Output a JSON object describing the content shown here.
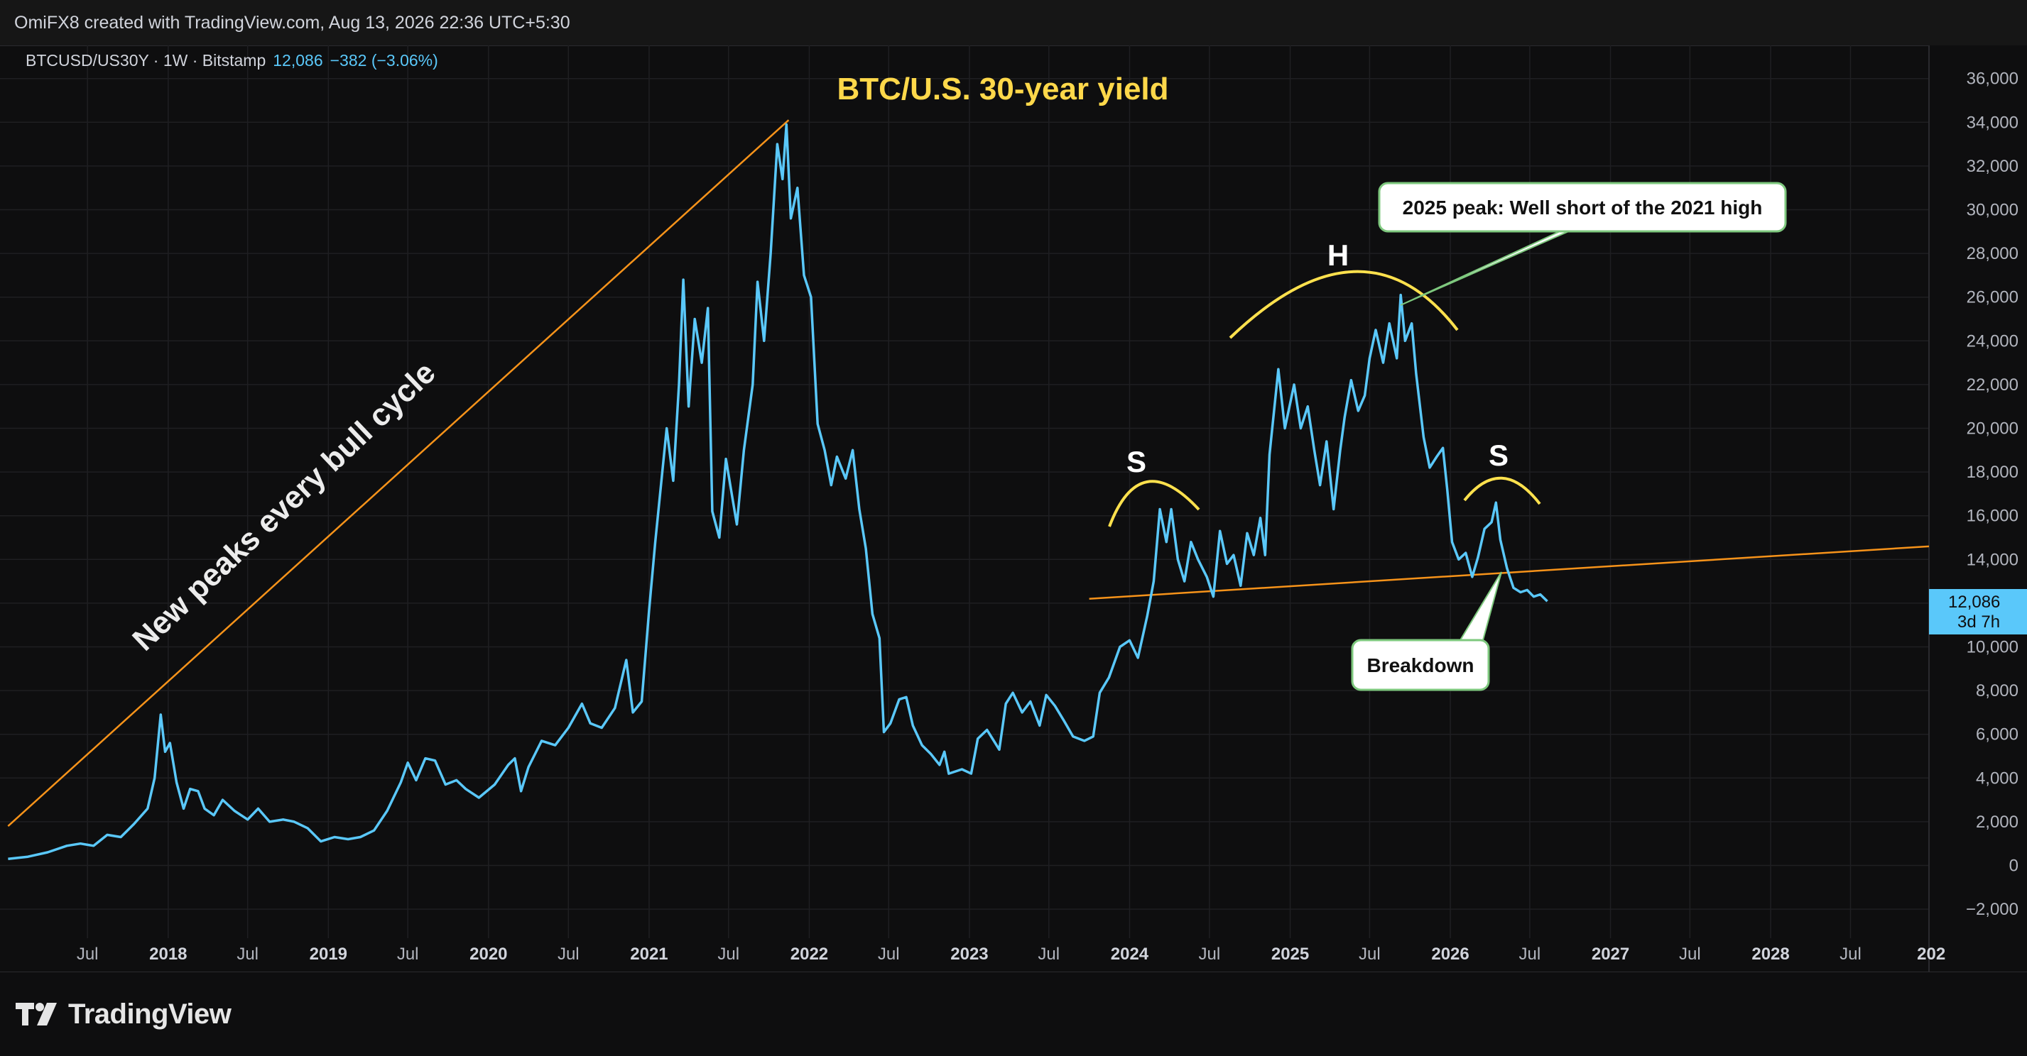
{
  "header": {
    "attribution": "OmiFX8 created with TradingView.com, Aug 13, 2026 22:36 UTC+5:30"
  },
  "symbol": {
    "label": "BTCUSD/US30Y · 1W · Bitstamp",
    "price": "12,086",
    "change": "−382 (−3.06%)"
  },
  "price_tag": {
    "price": "12,086",
    "countdown": "3d 7h"
  },
  "annotations": {
    "title": "BTC/U.S. 30-year yield",
    "diagonal": "New peaks every bull cycle",
    "shoulder_left": "S",
    "head": "H",
    "shoulder_right": "S",
    "callout_peak": "2025 peak: Well short of the 2021 high",
    "callout_breakdown": "Breakdown"
  },
  "brand": {
    "name": "TradingView"
  },
  "colors": {
    "background": "#0e0e0f",
    "series": "#5ac8fa",
    "trendline": "#f7931a",
    "title": "#ffd84a",
    "arcs": "#ffe14d",
    "grid": "#1f1f22"
  },
  "chart_data": {
    "type": "line",
    "title": "BTC/U.S. 30-year yield",
    "series_name": "BTCUSD/US30Y",
    "timeframe": "1W",
    "exchange": "Bitstamp",
    "ylim": [
      -3000,
      37000
    ],
    "yticks": [
      -2000,
      0,
      2000,
      4000,
      6000,
      8000,
      10000,
      12000,
      14000,
      16000,
      18000,
      20000,
      22000,
      24000,
      26000,
      28000,
      30000,
      32000,
      34000,
      36000
    ],
    "ytick_labels": [
      "−2,000",
      "0",
      "2,000",
      "4,000",
      "6,000",
      "8,000",
      "10,000",
      "12,000",
      "14,000",
      "16,000",
      "18,000",
      "20,000",
      "22,000",
      "24,000",
      "26,000",
      "28,000",
      "30,000",
      "32,000",
      "34,000",
      "36,000"
    ],
    "x_range": [
      "2017-01-01",
      "2029-01-01"
    ],
    "xticks": [
      {
        "date": "2017-07-01",
        "label": "Jul",
        "bold": false
      },
      {
        "date": "2018-01-01",
        "label": "2018",
        "bold": true
      },
      {
        "date": "2018-07-01",
        "label": "Jul",
        "bold": false
      },
      {
        "date": "2019-01-01",
        "label": "2019",
        "bold": true
      },
      {
        "date": "2019-07-01",
        "label": "Jul",
        "bold": false
      },
      {
        "date": "2020-01-01",
        "label": "2020",
        "bold": true
      },
      {
        "date": "2020-07-01",
        "label": "Jul",
        "bold": false
      },
      {
        "date": "2021-01-01",
        "label": "2021",
        "bold": true
      },
      {
        "date": "2021-07-01",
        "label": "Jul",
        "bold": false
      },
      {
        "date": "2022-01-01",
        "label": "2022",
        "bold": true
      },
      {
        "date": "2022-07-01",
        "label": "Jul",
        "bold": false
      },
      {
        "date": "2023-01-01",
        "label": "2023",
        "bold": true
      },
      {
        "date": "2023-07-01",
        "label": "Jul",
        "bold": false
      },
      {
        "date": "2024-01-01",
        "label": "2024",
        "bold": true
      },
      {
        "date": "2024-07-01",
        "label": "Jul",
        "bold": false
      },
      {
        "date": "2025-01-01",
        "label": "2025",
        "bold": true
      },
      {
        "date": "2025-07-01",
        "label": "Jul",
        "bold": false
      },
      {
        "date": "2026-01-01",
        "label": "2026",
        "bold": true
      },
      {
        "date": "2026-07-01",
        "label": "Jul",
        "bold": false
      },
      {
        "date": "2027-01-01",
        "label": "2027",
        "bold": true
      },
      {
        "date": "2027-07-01",
        "label": "Jul",
        "bold": false
      },
      {
        "date": "2028-01-01",
        "label": "2028",
        "bold": true
      },
      {
        "date": "2028-07-01",
        "label": "Jul",
        "bold": false
      },
      {
        "date": "2029-01-01",
        "label": "202",
        "bold": true
      }
    ],
    "points": [
      [
        "2017-01-01",
        300
      ],
      [
        "2017-02-15",
        400
      ],
      [
        "2017-04-01",
        600
      ],
      [
        "2017-05-15",
        900
      ],
      [
        "2017-06-15",
        1000
      ],
      [
        "2017-07-15",
        900
      ],
      [
        "2017-08-15",
        1400
      ],
      [
        "2017-09-15",
        1300
      ],
      [
        "2017-10-15",
        1900
      ],
      [
        "2017-11-15",
        2600
      ],
      [
        "2017-12-01",
        4000
      ],
      [
        "2017-12-15",
        6900
      ],
      [
        "2017-12-25",
        5200
      ],
      [
        "2018-01-05",
        5600
      ],
      [
        "2018-01-20",
        3800
      ],
      [
        "2018-02-05",
        2600
      ],
      [
        "2018-02-20",
        3500
      ],
      [
        "2018-03-10",
        3400
      ],
      [
        "2018-03-25",
        2600
      ],
      [
        "2018-04-15",
        2300
      ],
      [
        "2018-05-05",
        3000
      ],
      [
        "2018-06-01",
        2500
      ],
      [
        "2018-07-01",
        2100
      ],
      [
        "2018-07-25",
        2600
      ],
      [
        "2018-08-20",
        2000
      ],
      [
        "2018-09-20",
        2100
      ],
      [
        "2018-10-15",
        2000
      ],
      [
        "2018-11-15",
        1700
      ],
      [
        "2018-12-15",
        1100
      ],
      [
        "2019-01-15",
        1300
      ],
      [
        "2019-02-15",
        1200
      ],
      [
        "2019-03-15",
        1300
      ],
      [
        "2019-04-15",
        1600
      ],
      [
        "2019-05-15",
        2500
      ],
      [
        "2019-06-15",
        3800
      ],
      [
        "2019-07-01",
        4700
      ],
      [
        "2019-07-20",
        3900
      ],
      [
        "2019-08-10",
        4900
      ],
      [
        "2019-09-01",
        4800
      ],
      [
        "2019-09-25",
        3700
      ],
      [
        "2019-10-20",
        3900
      ],
      [
        "2019-11-10",
        3500
      ],
      [
        "2019-12-10",
        3100
      ],
      [
        "2020-01-15",
        3700
      ],
      [
        "2020-02-15",
        4600
      ],
      [
        "2020-03-01",
        4900
      ],
      [
        "2020-03-15",
        3400
      ],
      [
        "2020-04-01",
        4500
      ],
      [
        "2020-05-01",
        5700
      ],
      [
        "2020-06-01",
        5500
      ],
      [
        "2020-07-01",
        6300
      ],
      [
        "2020-08-01",
        7400
      ],
      [
        "2020-08-20",
        6500
      ],
      [
        "2020-09-15",
        6300
      ],
      [
        "2020-10-15",
        7200
      ],
      [
        "2020-11-10",
        9400
      ],
      [
        "2020-11-25",
        7000
      ],
      [
        "2020-12-15",
        7500
      ],
      [
        "2021-01-01",
        11700
      ],
      [
        "2021-01-15",
        14800
      ],
      [
        "2021-02-10",
        20000
      ],
      [
        "2021-02-25",
        17600
      ],
      [
        "2021-03-10",
        22000
      ],
      [
        "2021-03-20",
        26800
      ],
      [
        "2021-04-01",
        21000
      ],
      [
        "2021-04-15",
        25000
      ],
      [
        "2021-05-01",
        23000
      ],
      [
        "2021-05-15",
        25500
      ],
      [
        "2021-05-25",
        16200
      ],
      [
        "2021-06-10",
        15000
      ],
      [
        "2021-06-25",
        18600
      ],
      [
        "2021-07-10",
        16800
      ],
      [
        "2021-07-20",
        15600
      ],
      [
        "2021-08-05",
        19000
      ],
      [
        "2021-08-25",
        22000
      ],
      [
        "2021-09-05",
        26700
      ],
      [
        "2021-09-20",
        24000
      ],
      [
        "2021-10-05",
        28000
      ],
      [
        "2021-10-20",
        33000
      ],
      [
        "2021-11-01",
        31400
      ],
      [
        "2021-11-10",
        33900
      ],
      [
        "2021-11-20",
        29600
      ],
      [
        "2021-12-05",
        31000
      ],
      [
        "2021-12-20",
        27000
      ],
      [
        "2022-01-05",
        26000
      ],
      [
        "2022-01-20",
        20200
      ],
      [
        "2022-02-05",
        19000
      ],
      [
        "2022-02-20",
        17400
      ],
      [
        "2022-03-05",
        18700
      ],
      [
        "2022-03-25",
        17700
      ],
      [
        "2022-04-10",
        19000
      ],
      [
        "2022-04-25",
        16300
      ],
      [
        "2022-05-10",
        14500
      ],
      [
        "2022-05-25",
        11500
      ],
      [
        "2022-06-10",
        10400
      ],
      [
        "2022-06-20",
        6100
      ],
      [
        "2022-07-05",
        6500
      ],
      [
        "2022-07-25",
        7600
      ],
      [
        "2022-08-10",
        7700
      ],
      [
        "2022-08-25",
        6400
      ],
      [
        "2022-09-15",
        5500
      ],
      [
        "2022-10-05",
        5100
      ],
      [
        "2022-10-25",
        4600
      ],
      [
        "2022-11-05",
        5200
      ],
      [
        "2022-11-15",
        4200
      ],
      [
        "2022-12-15",
        4400
      ],
      [
        "2023-01-05",
        4200
      ],
      [
        "2023-01-20",
        5800
      ],
      [
        "2023-02-10",
        6200
      ],
      [
        "2023-03-10",
        5300
      ],
      [
        "2023-03-25",
        7400
      ],
      [
        "2023-04-10",
        7900
      ],
      [
        "2023-05-01",
        7000
      ],
      [
        "2023-05-20",
        7500
      ],
      [
        "2023-06-10",
        6400
      ],
      [
        "2023-06-25",
        7800
      ],
      [
        "2023-07-15",
        7300
      ],
      [
        "2023-08-05",
        6600
      ],
      [
        "2023-08-25",
        5900
      ],
      [
        "2023-09-20",
        5700
      ],
      [
        "2023-10-10",
        5900
      ],
      [
        "2023-10-25",
        7900
      ],
      [
        "2023-11-15",
        8600
      ],
      [
        "2023-12-10",
        10000
      ],
      [
        "2024-01-01",
        10300
      ],
      [
        "2024-01-20",
        9500
      ],
      [
        "2024-02-10",
        11400
      ],
      [
        "2024-02-25",
        13000
      ],
      [
        "2024-03-10",
        16300
      ],
      [
        "2024-03-25",
        14800
      ],
      [
        "2024-04-05",
        16300
      ],
      [
        "2024-04-20",
        14000
      ],
      [
        "2024-05-05",
        13000
      ],
      [
        "2024-05-20",
        14800
      ],
      [
        "2024-06-05",
        14000
      ],
      [
        "2024-06-25",
        13200
      ],
      [
        "2024-07-10",
        12300
      ],
      [
        "2024-07-25",
        15300
      ],
      [
        "2024-08-10",
        13800
      ],
      [
        "2024-08-25",
        14200
      ],
      [
        "2024-09-10",
        12800
      ],
      [
        "2024-09-25",
        15200
      ],
      [
        "2024-10-10",
        14200
      ],
      [
        "2024-10-25",
        15900
      ],
      [
        "2024-11-05",
        14200
      ],
      [
        "2024-11-15",
        18800
      ],
      [
        "2024-12-05",
        22700
      ],
      [
        "2024-12-20",
        20000
      ],
      [
        "2025-01-10",
        22000
      ],
      [
        "2025-01-25",
        20000
      ],
      [
        "2025-02-10",
        21000
      ],
      [
        "2025-02-25",
        19000
      ],
      [
        "2025-03-10",
        17400
      ],
      [
        "2025-03-25",
        19400
      ],
      [
        "2025-04-10",
        16300
      ],
      [
        "2025-04-25",
        19000
      ],
      [
        "2025-05-05",
        20500
      ],
      [
        "2025-05-20",
        22200
      ],
      [
        "2025-06-05",
        20800
      ],
      [
        "2025-06-20",
        21500
      ],
      [
        "2025-07-01",
        23200
      ],
      [
        "2025-07-15",
        24500
      ],
      [
        "2025-08-01",
        23000
      ],
      [
        "2025-08-15",
        24800
      ],
      [
        "2025-09-01",
        23200
      ],
      [
        "2025-09-10",
        26100
      ],
      [
        "2025-09-20",
        24000
      ],
      [
        "2025-10-05",
        24800
      ],
      [
        "2025-10-15",
        22500
      ],
      [
        "2025-11-01",
        19600
      ],
      [
        "2025-11-15",
        18200
      ],
      [
        "2025-12-01",
        18700
      ],
      [
        "2025-12-15",
        19100
      ],
      [
        "2025-12-25",
        17200
      ],
      [
        "2026-01-05",
        14800
      ],
      [
        "2026-01-20",
        14000
      ],
      [
        "2026-02-05",
        14300
      ],
      [
        "2026-02-20",
        13200
      ],
      [
        "2026-03-05",
        14100
      ],
      [
        "2026-03-20",
        15400
      ],
      [
        "2026-04-05",
        15700
      ],
      [
        "2026-04-15",
        16600
      ],
      [
        "2026-04-25",
        14900
      ],
      [
        "2026-05-10",
        13600
      ],
      [
        "2026-05-25",
        12700
      ],
      [
        "2026-06-10",
        12500
      ],
      [
        "2026-06-25",
        12600
      ],
      [
        "2026-07-10",
        12300
      ],
      [
        "2026-07-25",
        12400
      ],
      [
        "2026-08-10",
        12086
      ]
    ],
    "trendlines": [
      {
        "name": "New peaks every bull cycle",
        "from": [
          "2017-01-01",
          1800
        ],
        "to": [
          "2021-11-15",
          34100
        ]
      },
      {
        "name": "neckline",
        "from": [
          "2023-10-01",
          12200
        ],
        "to": [
          "2029-01-01",
          14600
        ]
      }
    ]
  }
}
